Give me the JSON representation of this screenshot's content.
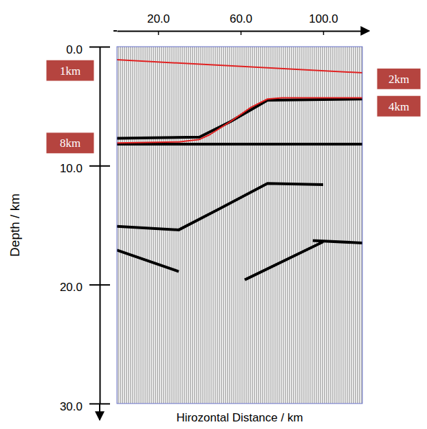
{
  "chart_data": {
    "type": "line",
    "x_label": "Hirozontal Distance / km",
    "y_label": "Depth / km",
    "xlim": [
      0,
      119
    ],
    "xticks": [
      {
        "value": 20,
        "label": "20.0"
      },
      {
        "value": 60,
        "label": "60.0"
      },
      {
        "value": 100,
        "label": "100.0"
      }
    ],
    "ylim": [
      0,
      30
    ],
    "yticks": [
      {
        "value": 0,
        "label": "0.0"
      },
      {
        "value": 10,
        "label": "10.0"
      },
      {
        "value": 20,
        "label": "20.0"
      },
      {
        "value": 30,
        "label": "30.0"
      }
    ],
    "series": [
      {
        "color": "#000000",
        "line_style": "thick",
        "x": [
          0,
          119
        ],
        "values": [
          8.2,
          8.2
        ]
      },
      {
        "color": "#000000",
        "line_style": "thick",
        "x": [
          0,
          40,
          55,
          73,
          119
        ],
        "values": [
          7.7,
          7.6,
          6.3,
          4.5,
          4.4
        ]
      },
      {
        "color": "#000000",
        "line_style": "thick",
        "x": [
          0,
          30,
          50,
          73,
          100
        ],
        "values": [
          15.1,
          15.4,
          13.6,
          11.5,
          11.6
        ]
      },
      {
        "color": "#000000",
        "line_style": "thick",
        "x": [
          0,
          30
        ],
        "values": [
          17.1,
          18.9
        ]
      },
      {
        "color": "#000000",
        "line_style": "thick",
        "x": [
          95,
          119
        ],
        "values": [
          16.3,
          16.5
        ]
      },
      {
        "color": "#000000",
        "line_style": "thick",
        "x": [
          62,
          100
        ],
        "values": [
          19.6,
          16.4
        ]
      },
      {
        "color": "#e02020",
        "line_style": "solid",
        "x": [
          0,
          119
        ],
        "values": [
          1.1,
          2.2
        ]
      },
      {
        "color": "#e02020",
        "line_style": "solid",
        "x": [
          0,
          30,
          40,
          45,
          55,
          65,
          73,
          80,
          119
        ],
        "values": [
          8.1,
          8.0,
          7.8,
          7.4,
          6.3,
          5.1,
          4.4,
          4.3,
          4.3
        ]
      }
    ],
    "annotations": [
      {
        "text": "1km",
        "side": "left",
        "y": 2.0
      },
      {
        "text": "2km",
        "side": "right",
        "y": 2.7
      },
      {
        "text": "4km",
        "side": "right",
        "y": 5.0
      },
      {
        "text": "8km",
        "side": "left",
        "y": 8.1
      }
    ]
  }
}
